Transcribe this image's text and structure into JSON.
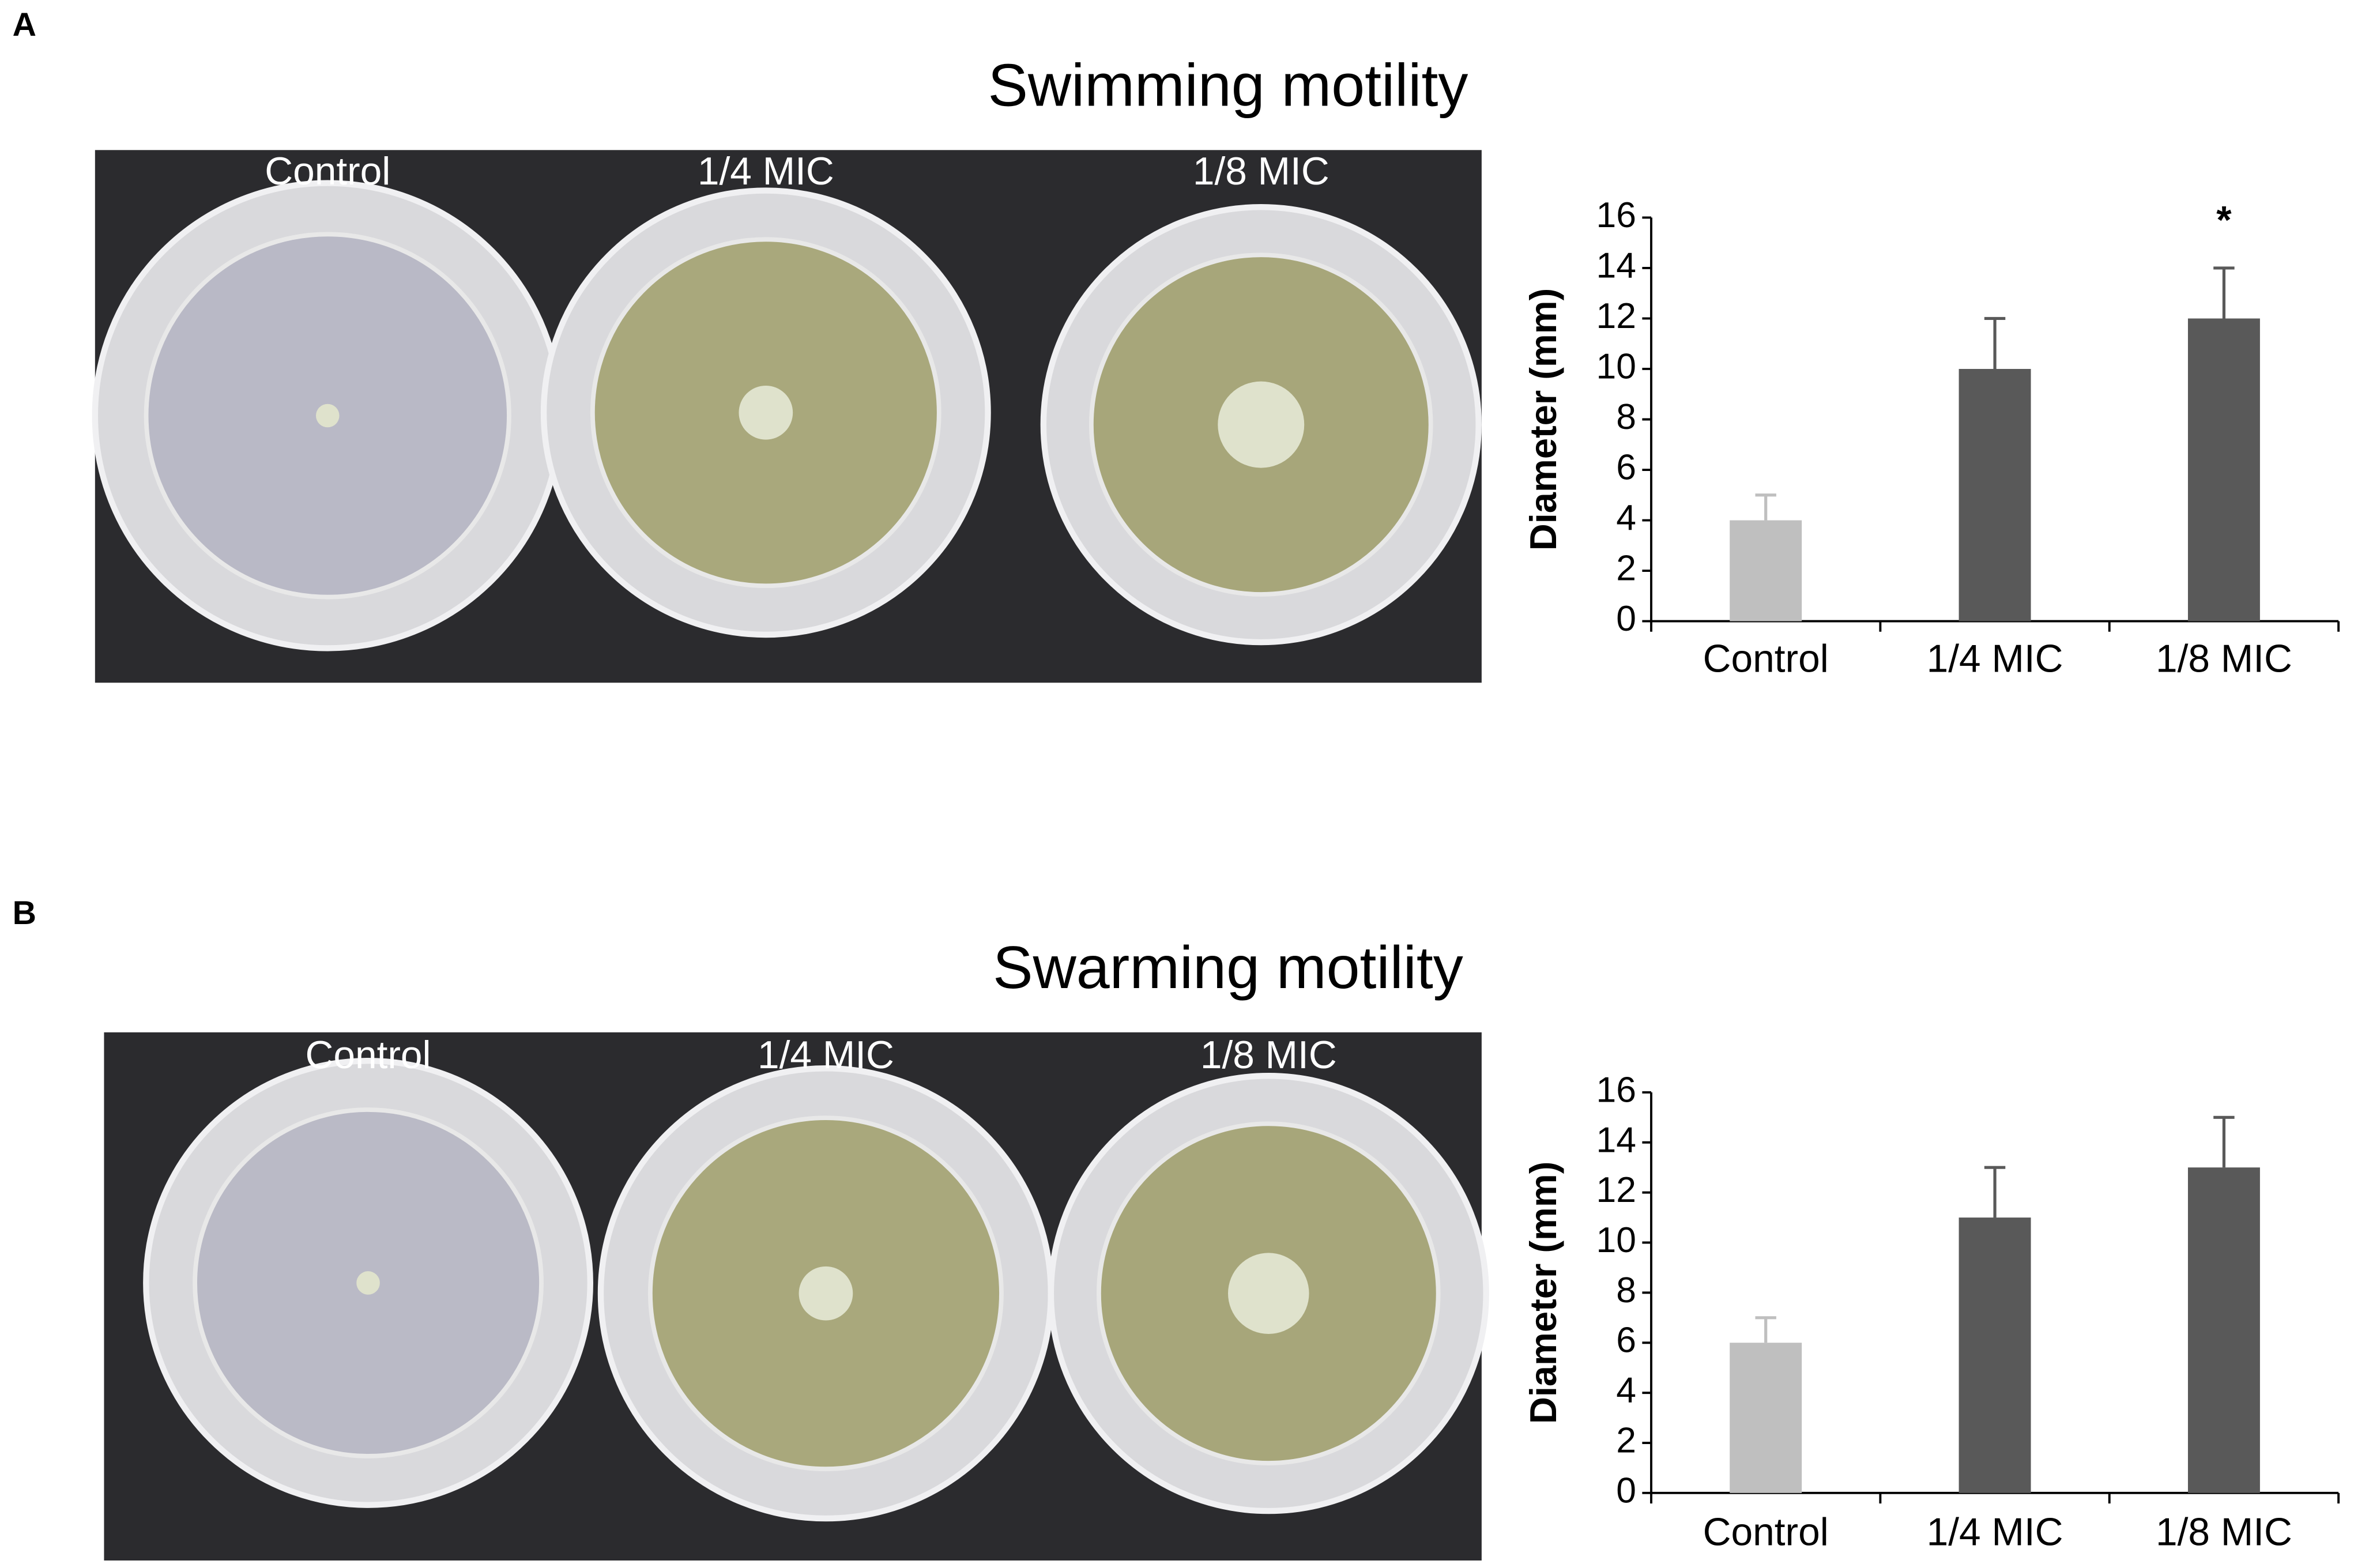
{
  "chart_data": [
    {
      "type": "bar",
      "panel_label": "A",
      "title": "Swimming motility",
      "categories": [
        "Control",
        "1/4 MIC",
        "1/8 MIC"
      ],
      "series": [
        {
          "values": [
            4,
            10,
            12
          ],
          "errors": [
            1,
            2,
            2
          ],
          "colors": [
            "#bfbfbf",
            "#595959",
            "#595959"
          ]
        }
      ],
      "y_label": "Diameter (mm)",
      "ylim": [
        0,
        16
      ],
      "yticks": [
        0,
        2,
        4,
        6,
        8,
        10,
        12,
        14,
        16
      ],
      "annotations": [
        {
          "text": "*",
          "category": "1/8 MIC"
        }
      ]
    },
    {
      "type": "bar",
      "panel_label": "B",
      "title": "Swarming motility",
      "categories": [
        "Control",
        "1/4 MIC",
        "1/8 MIC"
      ],
      "series": [
        {
          "values": [
            6,
            11,
            13
          ],
          "errors": [
            1,
            2,
            2
          ],
          "colors": [
            "#bfbfbf",
            "#595959",
            "#595959"
          ]
        }
      ],
      "y_label": "Diameter (mm)",
      "ylim": [
        0,
        16
      ],
      "yticks": [
        0,
        2,
        4,
        6,
        8,
        10,
        12,
        14,
        16
      ]
    }
  ]
}
